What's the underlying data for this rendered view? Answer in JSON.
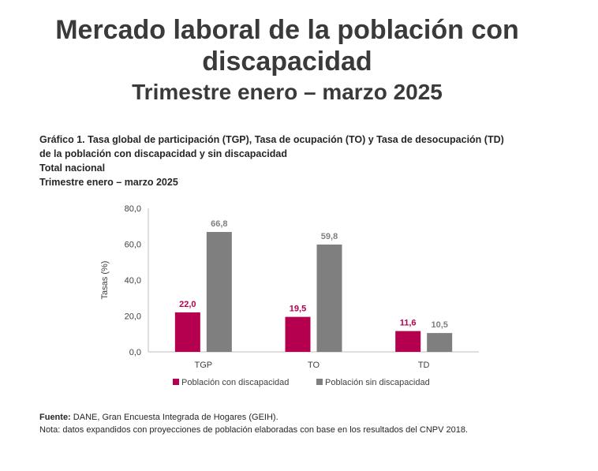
{
  "header": {
    "title": "Mercado laboral de la población con discapacidad",
    "subtitle": "Trimestre enero – marzo 2025"
  },
  "graph_caption": {
    "line1": "Gráfico 1. Tasa global de participación (TGP), Tasa de ocupación (TO) y Tasa de desocupación (TD)",
    "line2": "de la población con discapacidad y sin discapacidad",
    "line3": "Total nacional",
    "line4": "Trimestre enero – marzo 2025"
  },
  "chart_data": {
    "type": "bar",
    "categories": [
      "TGP",
      "TO",
      "TD"
    ],
    "series": [
      {
        "name": "Población con discapacidad",
        "values": [
          22.0,
          19.5,
          11.6
        ],
        "labels": [
          "22,0",
          "19,5",
          "11,6"
        ],
        "color": "#b5004f"
      },
      {
        "name": "Población sin discapacidad",
        "values": [
          66.8,
          59.8,
          10.5
        ],
        "labels": [
          "66,8",
          "59,8",
          "10,5"
        ],
        "color": "#7f7f7f"
      }
    ],
    "ylabel": "Tasas (%)",
    "ylim": [
      0,
      80
    ],
    "yticks": [
      0,
      20,
      40,
      60,
      80
    ],
    "ytick_labels": [
      "0,0",
      "20,0",
      "40,0",
      "60,0",
      "80,0"
    ],
    "grid": false,
    "legend": "bottom"
  },
  "footer": {
    "source_label": "Fuente:",
    "source_text": " DANE, Gran Encuesta Integrada de Hogares (GEIH).",
    "note": "Nota: datos expandidos con proyecciones de población elaboradas con base en los resultados del CNPV 2018."
  }
}
